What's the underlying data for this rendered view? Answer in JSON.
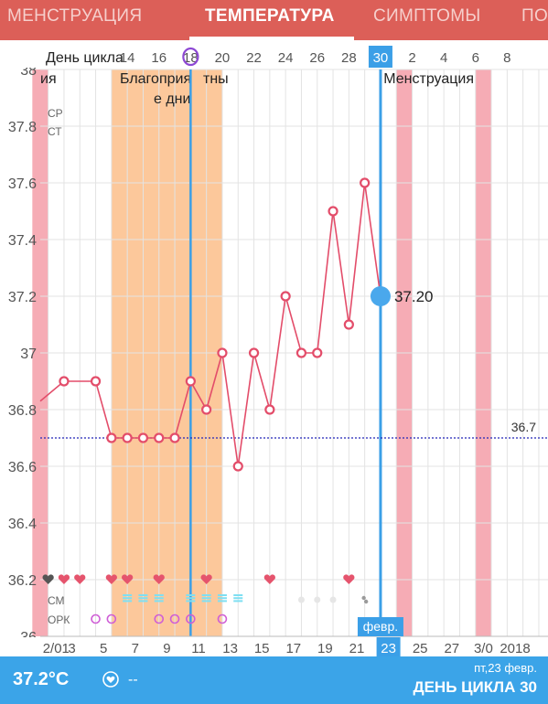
{
  "tabs": [
    {
      "label": "МЕНСТРУАЦИЯ",
      "active": false
    },
    {
      "label": "ТЕМПЕРАТУРА",
      "active": true
    },
    {
      "label": "СИМПТОМЫ",
      "active": false
    },
    {
      "label": "ПО",
      "active": false
    }
  ],
  "chart_data": {
    "type": "line",
    "header_label": "День цикла",
    "ylim": [
      36.0,
      38.0
    ],
    "y_ticks": [
      "38",
      "37.8",
      "37.6",
      "37.4",
      "37.2",
      "37",
      "36.8",
      "36.6",
      "36.4",
      "36.2",
      "36"
    ],
    "cycle_day_labels": [
      {
        "day": 14,
        "label": "14"
      },
      {
        "day": 16,
        "label": "16"
      },
      {
        "day": 18,
        "label": "18"
      },
      {
        "day": 20,
        "label": "20"
      },
      {
        "day": 22,
        "label": "22"
      },
      {
        "day": 24,
        "label": "24"
      },
      {
        "day": 26,
        "label": "26"
      },
      {
        "day": 28,
        "label": "28"
      },
      {
        "day": 30,
        "label": "30",
        "selected": true
      },
      {
        "day": 32,
        "label": "2"
      },
      {
        "day": 34,
        "label": "4"
      },
      {
        "day": 36,
        "label": "6"
      },
      {
        "day": 38,
        "label": "8"
      }
    ],
    "date_labels": [
      {
        "day": 1,
        "label": "2/01"
      },
      {
        "day": 2,
        "label": "3"
      },
      {
        "day": 4,
        "label": "5"
      },
      {
        "day": 6,
        "label": "7"
      },
      {
        "day": 8,
        "label": "9"
      },
      {
        "day": 10,
        "label": "11"
      },
      {
        "day": 12,
        "label": "13"
      },
      {
        "day": 14,
        "label": "15"
      },
      {
        "day": 16,
        "label": "17"
      },
      {
        "day": 18,
        "label": "19"
      },
      {
        "day": 20,
        "label": "21"
      },
      {
        "day": 22,
        "label": "23",
        "selected": true
      },
      {
        "day": 24,
        "label": "25"
      },
      {
        "day": 26,
        "label": "27"
      },
      {
        "day": 28,
        "label": "3/0"
      },
      {
        "day": 30,
        "label": "2018"
      }
    ],
    "month_badge": "февр.",
    "series": [
      {
        "points": [
          {
            "day": 1,
            "value": 36.9
          },
          {
            "day": 3,
            "value": 36.9
          },
          {
            "day": 4,
            "value": 36.7
          },
          {
            "day": 5,
            "value": 36.7
          },
          {
            "day": 6,
            "value": 36.7
          },
          {
            "day": 7,
            "value": 36.7
          },
          {
            "day": 8,
            "value": 36.7
          },
          {
            "day": 9,
            "value": 36.9
          },
          {
            "day": 10,
            "value": 36.8
          },
          {
            "day": 11,
            "value": 37.0
          },
          {
            "day": 12,
            "value": 36.6
          },
          {
            "day": 13,
            "value": 37.0
          },
          {
            "day": 14,
            "value": 36.8
          },
          {
            "day": 15,
            "value": 37.2
          },
          {
            "day": 16,
            "value": 37.0
          },
          {
            "day": 17,
            "value": 37.0
          },
          {
            "day": 18,
            "value": 37.5
          },
          {
            "day": 19,
            "value": 37.1
          },
          {
            "day": 20,
            "value": 37.6
          }
        ],
        "leading_value": 36.83,
        "selected_point": {
          "day": 21,
          "value": 37.2,
          "label": "37.20"
        }
      }
    ],
    "coverline": {
      "value": 36.7,
      "label": "36.7"
    },
    "fertile_window": {
      "from_day": 4.5,
      "to_day": 11.5,
      "label": "Благоприятные дни",
      "label_lines": [
        "Благоприя",
        "е дни",
        "тны"
      ]
    },
    "ovulation_day": 9.5,
    "selected_day": 21.5,
    "menstruation": [
      {
        "from_day": -0.5,
        "to_day": 0.5,
        "label": "ия"
      },
      {
        "from_day": 22.5,
        "to_day": 23.5,
        "label": "Менструация"
      },
      {
        "from_day": 27.5,
        "to_day": 28.5,
        "label": ""
      }
    ],
    "side_labels": {
      "cervix_position": "СР",
      "cervix_texture": "СТ",
      "cervical_mucus": "СМ",
      "ovulation_test": "ОРК"
    },
    "sex_markers": [
      {
        "day": 0.5,
        "dark": true
      },
      {
        "day": 1.5
      },
      {
        "day": 2.5
      },
      {
        "day": 4.5
      },
      {
        "day": 5.5
      },
      {
        "day": 7.5
      },
      {
        "day": 10.5
      },
      {
        "day": 14.5
      },
      {
        "day": 19.5
      }
    ],
    "mucus_markers": [
      {
        "day": 5.5
      },
      {
        "day": 6.5
      },
      {
        "day": 7.5
      },
      {
        "day": 9.5
      },
      {
        "day": 10.5
      },
      {
        "day": 11.5
      },
      {
        "day": 12.5
      }
    ],
    "mucus_dry_markers": [
      {
        "day": 16.5
      },
      {
        "day": 17.5
      },
      {
        "day": 18.5
      }
    ],
    "mucus_sticky_markers": [
      {
        "day": 20.5
      }
    ],
    "opk_markers": [
      {
        "day": 3.5
      },
      {
        "day": 4.5
      },
      {
        "day": 7.5
      },
      {
        "day": 8.5
      },
      {
        "day": 9.5
      },
      {
        "day": 11.5
      }
    ]
  },
  "colors": {
    "tab_bar": "#dc5f58",
    "line": "#e34d6a",
    "fertile": "#fcc89b",
    "menstruation": "#f59da8",
    "selection": "#3b9fe7",
    "coverline": "#2225b8",
    "grid": "#e3e3e3",
    "ovulation_circle": "#8d48d4",
    "mucus": "#7fdff2",
    "heart": "#e5546d",
    "heart_dark": "#555555"
  },
  "bottom_bar": {
    "temperature": "37.2°C",
    "sex_value": "--",
    "date": "пт,23 февр.",
    "cycle_day": "ДЕНЬ ЦИКЛА 30"
  }
}
